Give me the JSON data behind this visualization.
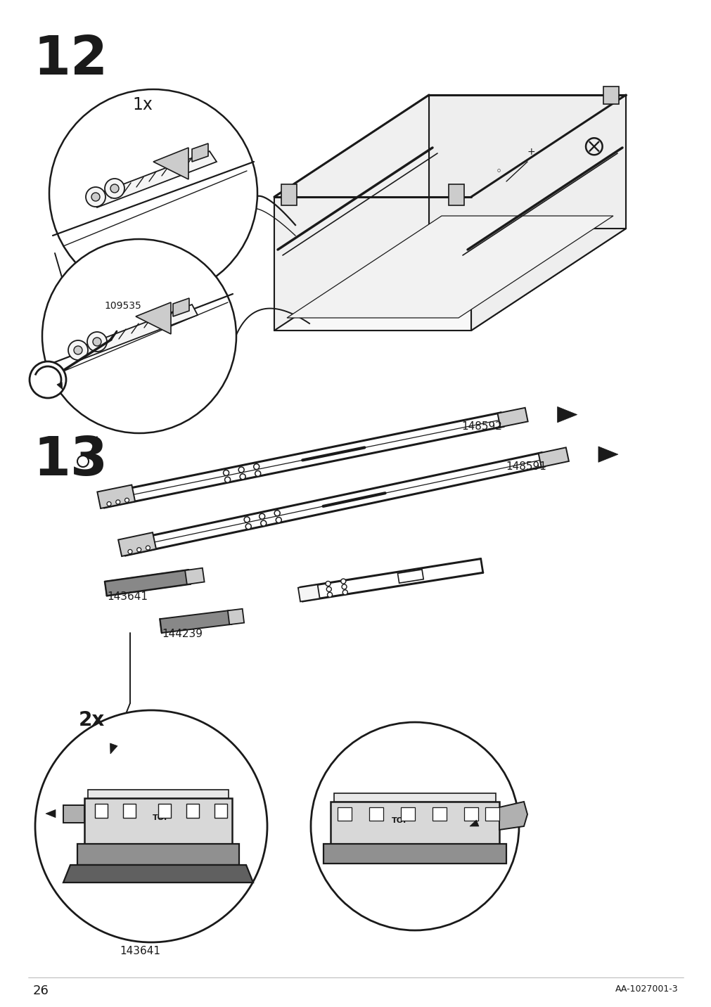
{
  "background_color": "#ffffff",
  "page_number": "26",
  "doc_number": "AA-1027001-3",
  "step12_label": "12",
  "step13_label": "13",
  "qty_1x": "1x",
  "qty_2x": "2x",
  "part_109535": "109535",
  "part_148592": "148592",
  "part_148591": "148591",
  "part_143641": "143641",
  "part_144239": "144239",
  "line_color": "#1a1a1a",
  "fill_light": "#f5f5f5",
  "fill_mid": "#cccccc",
  "fill_dark": "#888888",
  "fill_darkest": "#444444"
}
